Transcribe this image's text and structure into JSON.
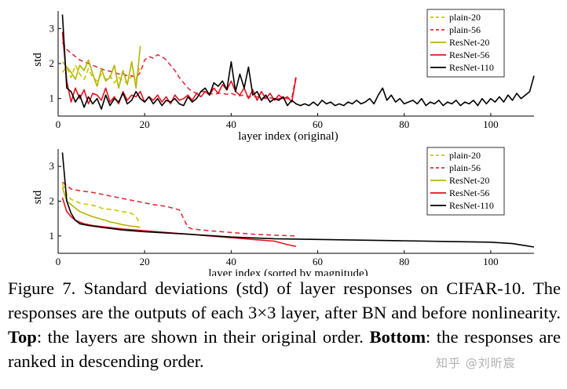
{
  "chart_data": [
    {
      "type": "line",
      "title": "",
      "xlabel": "layer index (original)",
      "ylabel": "std",
      "xlim": [
        0,
        110
      ],
      "ylim": [
        0.5,
        3.5
      ],
      "xticks": [
        0,
        20,
        40,
        60,
        80,
        100
      ],
      "yticks": [
        1,
        2,
        3
      ],
      "legend_position": "top-right",
      "series": [
        {
          "name": "plain-20",
          "color": "#c8c800",
          "dash": "6,4",
          "x": [
            1,
            2,
            3,
            4,
            5,
            6,
            7,
            8,
            9,
            10,
            11,
            12,
            13,
            14,
            15,
            16,
            17,
            18,
            19
          ],
          "y": [
            1.75,
            1.9,
            1.6,
            1.95,
            1.7,
            1.55,
            1.85,
            1.6,
            1.5,
            1.7,
            1.55,
            1.65,
            1.45,
            1.6,
            1.5,
            1.45,
            1.65,
            1.55,
            1.95
          ]
        },
        {
          "name": "plain-56",
          "color": "#e0303a",
          "dash": "6,4",
          "x": [
            1,
            2,
            3,
            4,
            5,
            6,
            7,
            8,
            9,
            10,
            11,
            12,
            13,
            14,
            15,
            16,
            17,
            18,
            19,
            20,
            21,
            22,
            23,
            24,
            25,
            26,
            27,
            28,
            29,
            30,
            31,
            32,
            33,
            34,
            35,
            36,
            37,
            38,
            39,
            40,
            41,
            42,
            43,
            44,
            45,
            46,
            47,
            48,
            49,
            50,
            51,
            52,
            53,
            54,
            55
          ],
          "y": [
            2.6,
            2.4,
            2.3,
            2.2,
            2.1,
            2.05,
            2.0,
            1.95,
            1.9,
            1.85,
            1.8,
            1.78,
            1.75,
            1.7,
            1.7,
            1.65,
            1.65,
            1.6,
            1.75,
            2.1,
            2.2,
            2.15,
            2.25,
            2.2,
            2.1,
            1.95,
            1.8,
            1.6,
            1.45,
            1.3,
            1.2,
            1.15,
            1.2,
            1.2,
            1.15,
            1.12,
            1.15,
            1.15,
            1.12,
            1.15,
            1.1,
            1.08,
            1.1,
            1.05,
            1.05,
            1.05,
            1.02,
            1.0,
            1.02,
            1.0,
            1.0,
            1.0,
            1.0,
            1.0,
            1.65
          ]
        },
        {
          "name": "ResNet-20",
          "color": "#b4b400",
          "dash": "",
          "x": [
            1,
            2,
            3,
            4,
            5,
            6,
            7,
            8,
            9,
            10,
            11,
            12,
            13,
            14,
            15,
            16,
            17,
            18,
            19
          ],
          "y": [
            2.05,
            1.9,
            1.75,
            1.55,
            1.95,
            1.8,
            2.1,
            1.7,
            1.35,
            1.85,
            1.5,
            1.6,
            1.95,
            1.3,
            1.8,
            1.4,
            2.05,
            1.3,
            2.5
          ]
        },
        {
          "name": "ResNet-56",
          "color": "#e8101e",
          "dash": "",
          "x": [
            1,
            2,
            3,
            4,
            5,
            6,
            7,
            8,
            9,
            10,
            11,
            12,
            13,
            14,
            15,
            16,
            17,
            18,
            19,
            20,
            21,
            22,
            23,
            24,
            25,
            26,
            27,
            28,
            29,
            30,
            31,
            32,
            33,
            34,
            35,
            36,
            37,
            38,
            39,
            40,
            41,
            42,
            43,
            44,
            45,
            46,
            47,
            48,
            49,
            50,
            51,
            52,
            53,
            54,
            55
          ],
          "y": [
            2.9,
            1.5,
            0.9,
            1.3,
            1.0,
            1.25,
            0.85,
            1.15,
            1.1,
            0.95,
            1.3,
            0.9,
            1.05,
            0.85,
            1.2,
            0.95,
            1.1,
            1.05,
            1.2,
            0.9,
            1.05,
            0.95,
            1.1,
            0.9,
            1.05,
            0.85,
            1.1,
            0.95,
            1.0,
            1.1,
            0.95,
            1.15,
            1.05,
            1.2,
            1.1,
            1.3,
            1.15,
            1.4,
            1.25,
            1.5,
            1.2,
            1.1,
            1.3,
            1.0,
            1.25,
            0.95,
            1.2,
            1.0,
            1.15,
            0.95,
            1.1,
            1.0,
            1.05,
            0.9,
            1.6
          ]
        },
        {
          "name": "ResNet-110",
          "color": "#000000",
          "dash": "",
          "x": [
            1,
            2,
            3,
            4,
            5,
            6,
            7,
            8,
            9,
            10,
            11,
            12,
            13,
            14,
            15,
            16,
            17,
            18,
            19,
            20,
            21,
            22,
            23,
            24,
            25,
            26,
            27,
            28,
            29,
            30,
            31,
            32,
            33,
            34,
            35,
            36,
            37,
            38,
            39,
            40,
            41,
            42,
            43,
            44,
            45,
            46,
            47,
            48,
            49,
            50,
            51,
            52,
            53,
            54,
            55,
            56,
            57,
            58,
            59,
            60,
            61,
            62,
            63,
            64,
            65,
            66,
            67,
            68,
            69,
            70,
            71,
            72,
            73,
            74,
            75,
            76,
            77,
            78,
            79,
            80,
            81,
            82,
            83,
            84,
            85,
            86,
            87,
            88,
            89,
            90,
            91,
            92,
            93,
            94,
            95,
            96,
            97,
            98,
            99,
            100,
            101,
            102,
            103,
            104,
            105,
            106,
            107,
            108,
            109,
            110
          ],
          "y": [
            3.4,
            1.3,
            1.2,
            0.9,
            1.1,
            0.75,
            1.05,
            0.85,
            1.0,
            0.7,
            1.1,
            0.8,
            1.0,
            0.9,
            1.15,
            0.85,
            0.95,
            1.2,
            1.0,
            0.9,
            1.05,
            0.85,
            1.0,
            0.8,
            0.95,
            0.9,
            1.0,
            0.85,
            0.8,
            1.05,
            0.9,
            1.0,
            1.2,
            1.3,
            1.1,
            1.45,
            1.35,
            1.5,
            1.25,
            2.05,
            1.2,
            1.7,
            1.3,
            1.9,
            1.1,
            1.2,
            0.95,
            1.1,
            0.9,
            1.0,
            0.95,
            1.05,
            0.8,
            0.95,
            0.85,
            0.8,
            0.85,
            0.8,
            0.9,
            0.8,
            0.95,
            0.85,
            0.9,
            0.8,
            0.85,
            0.8,
            0.9,
            0.85,
            0.95,
            0.85,
            0.9,
            1.0,
            0.85,
            1.1,
            1.3,
            0.95,
            1.1,
            0.9,
            1.0,
            0.85,
            0.9,
            0.95,
            0.85,
            1.0,
            0.8,
            0.9,
            0.85,
            0.95,
            0.8,
            0.9,
            0.85,
            0.95,
            0.8,
            0.9,
            0.85,
            0.95,
            0.8,
            1.0,
            0.85,
            1.0,
            0.9,
            1.05,
            0.9,
            1.1,
            0.95,
            1.15,
            1.0,
            1.1,
            1.2,
            1.65
          ]
        }
      ]
    },
    {
      "type": "line",
      "title": "",
      "xlabel": "layer index (sorted by magnitude)",
      "ylabel": "std",
      "xlim": [
        0,
        110
      ],
      "ylim": [
        0.5,
        3.5
      ],
      "xticks": [
        0,
        20,
        40,
        60,
        80,
        100
      ],
      "yticks": [
        1,
        2,
        3
      ],
      "legend_position": "top-right",
      "series": [
        {
          "name": "plain-20",
          "color": "#c8c800",
          "dash": "6,4",
          "x": [
            1,
            2,
            3,
            4,
            5,
            6,
            7,
            8,
            9,
            10,
            11,
            12,
            13,
            14,
            15,
            16,
            17,
            18,
            19
          ],
          "y": [
            2.5,
            2.2,
            2.05,
            2.0,
            1.95,
            1.92,
            1.9,
            1.88,
            1.85,
            1.8,
            1.78,
            1.76,
            1.75,
            1.72,
            1.7,
            1.68,
            1.65,
            1.55,
            1.35
          ]
        },
        {
          "name": "plain-56",
          "color": "#e0303a",
          "dash": "6,4",
          "x": [
            1,
            3,
            5,
            8,
            10,
            12,
            14,
            16,
            18,
            20,
            22,
            25,
            28,
            29,
            30,
            31,
            35,
            40,
            45,
            50,
            55
          ],
          "y": [
            2.55,
            2.35,
            2.3,
            2.25,
            2.2,
            2.15,
            2.1,
            2.05,
            2.0,
            1.95,
            1.9,
            1.85,
            1.75,
            1.5,
            1.25,
            1.2,
            1.15,
            1.1,
            1.05,
            1.02,
            1.0
          ]
        },
        {
          "name": "ResNet-20",
          "color": "#b4b400",
          "dash": "",
          "x": [
            1,
            2,
            3,
            4,
            5,
            6,
            7,
            8,
            9,
            10,
            11,
            12,
            13,
            14,
            15,
            16,
            17,
            18,
            19
          ],
          "y": [
            2.4,
            2.0,
            1.9,
            1.8,
            1.7,
            1.65,
            1.6,
            1.55,
            1.52,
            1.48,
            1.45,
            1.4,
            1.38,
            1.35,
            1.32,
            1.3,
            1.28,
            1.27,
            1.25
          ]
        },
        {
          "name": "ResNet-56",
          "color": "#e8101e",
          "dash": "",
          "x": [
            1,
            2,
            3,
            4,
            5,
            6,
            8,
            10,
            15,
            20,
            25,
            30,
            35,
            40,
            45,
            50,
            53,
            55
          ],
          "y": [
            2.1,
            1.7,
            1.55,
            1.45,
            1.4,
            1.35,
            1.3,
            1.27,
            1.2,
            1.15,
            1.1,
            1.05,
            1.0,
            0.95,
            0.9,
            0.85,
            0.75,
            0.7
          ]
        },
        {
          "name": "ResNet-110",
          "color": "#000000",
          "dash": "",
          "x": [
            1,
            2,
            3,
            4,
            5,
            7,
            10,
            15,
            20,
            30,
            40,
            50,
            60,
            70,
            80,
            90,
            100,
            105,
            108,
            110
          ],
          "y": [
            3.4,
            2.0,
            1.65,
            1.45,
            1.35,
            1.3,
            1.25,
            1.17,
            1.12,
            1.05,
            0.97,
            0.92,
            0.9,
            0.88,
            0.86,
            0.84,
            0.82,
            0.78,
            0.72,
            0.68
          ]
        }
      ]
    }
  ],
  "caption": {
    "prefix": "Figure 7. Standard deviations (std) of layer responses on CIFAR-10. The responses are the outputs of each 3×3 layer, after BN and before nonlinearity. ",
    "top_label": "Top",
    "middle": ": the layers are shown in their original order. ",
    "bottom_label": "Bottom",
    "suffix": ": the responses are ranked in descending order."
  },
  "watermark": "知乎 @刘昕宸"
}
